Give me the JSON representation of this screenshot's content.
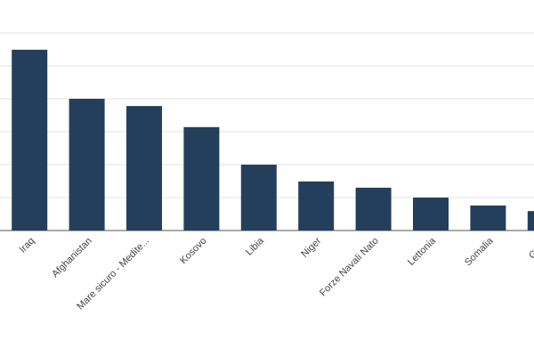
{
  "chart_data": {
    "type": "bar",
    "categories": [
      "Iraq",
      "Afghanistan",
      "Mare sicuro - Medite...",
      "Kosovo",
      "Libia",
      "Niger",
      "Forze Navali Nato",
      "Lettonia",
      "Somalia",
      "Gibuti"
    ],
    "values": [
      5.49,
      4.0,
      3.78,
      3.14,
      2.0,
      1.49,
      1.3,
      1.0,
      0.76,
      0.59
    ],
    "color": "#243f5b",
    "ylim": [
      0,
      6
    ],
    "yticks": [
      0,
      1,
      2,
      3,
      4,
      5,
      6
    ],
    "grid": true
  }
}
